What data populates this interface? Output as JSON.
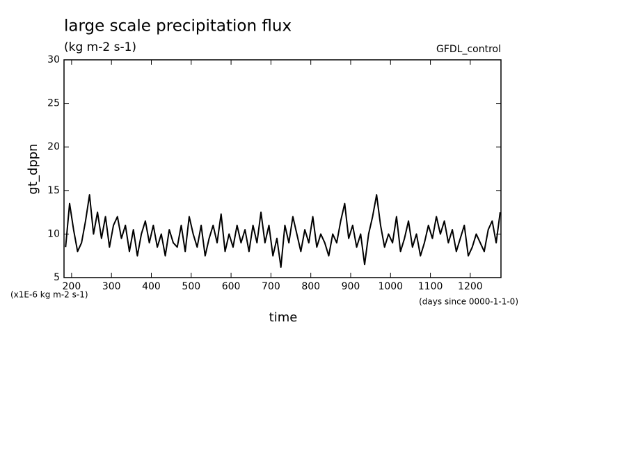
{
  "chart_data": {
    "type": "line",
    "title": "large scale precipitation flux",
    "subtitle": "(kg m-2 s-1)",
    "annotation": "GFDL_control",
    "ylabel": "gt_dppn",
    "xlabel": "time",
    "y_unit_note": "(x1E-6 kg m-2 s-1)",
    "x_unit_note": "(days since 0000-1-1-0)",
    "xlim": [
      181,
      1277
    ],
    "xticks": [
      200,
      300,
      400,
      500,
      600,
      700,
      800,
      900,
      1000,
      1100,
      1200
    ],
    "ylim": [
      5,
      30
    ],
    "yticks": [
      5,
      10,
      15,
      20,
      25,
      30
    ],
    "x": [
      185,
      195,
      205,
      215,
      225,
      235,
      245,
      255,
      265,
      275,
      285,
      295,
      305,
      315,
      325,
      335,
      345,
      355,
      365,
      375,
      385,
      395,
      405,
      415,
      425,
      435,
      445,
      455,
      465,
      475,
      485,
      495,
      505,
      515,
      525,
      535,
      545,
      555,
      565,
      575,
      585,
      595,
      605,
      615,
      625,
      635,
      645,
      655,
      665,
      675,
      685,
      695,
      705,
      715,
      725,
      735,
      745,
      755,
      765,
      775,
      785,
      795,
      805,
      815,
      825,
      835,
      845,
      855,
      865,
      875,
      885,
      895,
      905,
      915,
      925,
      935,
      945,
      955,
      965,
      975,
      985,
      995,
      1005,
      1015,
      1025,
      1035,
      1045,
      1055,
      1065,
      1075,
      1085,
      1095,
      1105,
      1115,
      1125,
      1135,
      1145,
      1155,
      1165,
      1175,
      1185,
      1195,
      1205,
      1215,
      1225,
      1235,
      1245,
      1255,
      1265,
      1275
    ],
    "series": [
      {
        "color": "#000000",
        "values": [
          8.5,
          13.5,
          10.5,
          8,
          9,
          11.5,
          14.5,
          10,
          12.5,
          9.5,
          12,
          8.5,
          11,
          12,
          9.5,
          11,
          8,
          10.5,
          7.5,
          10,
          11.5,
          9,
          11,
          8.5,
          10,
          7.5,
          10.5,
          9,
          8.5,
          11,
          8,
          12,
          10,
          8.5,
          11,
          7.5,
          9.5,
          11,
          9,
          12.3,
          8,
          10,
          8.5,
          11,
          9,
          10.5,
          8,
          11,
          9,
          12.5,
          9,
          11,
          7.5,
          9.5,
          6.2,
          11,
          9,
          12,
          10,
          8,
          10.5,
          9,
          12,
          8.5,
          10,
          9,
          7.5,
          10,
          9,
          11.5,
          13.5,
          9.5,
          11,
          8.5,
          10,
          6.5,
          10,
          12,
          14.5,
          11,
          8.5,
          10,
          9,
          12,
          8,
          9.5,
          11.5,
          8.5,
          10,
          7.5,
          9,
          11,
          9.5,
          12,
          10,
          11.5,
          9,
          10.5,
          8,
          9.5,
          11,
          7.5,
          8.5,
          10,
          9,
          8,
          10.5,
          11.5,
          9,
          12.5
        ]
      }
    ]
  }
}
